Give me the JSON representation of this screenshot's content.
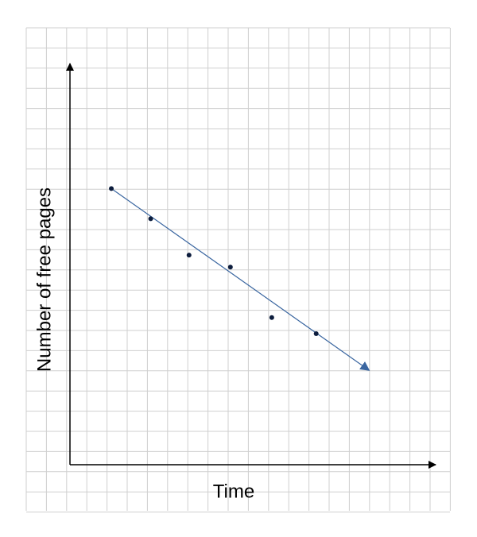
{
  "chart_data": {
    "type": "scatter",
    "x_label": "Time",
    "y_label": "Number of free pages",
    "x": [
      2.05,
      4.0,
      5.9,
      7.95,
      10.0,
      12.2
    ],
    "y": [
      13.7,
      12.2,
      10.4,
      9.8,
      7.3,
      6.5
    ],
    "color": "#0d1d3d",
    "trend_line": {
      "x": [
        2.05,
        14.8
      ],
      "y": [
        13.7,
        4.7
      ],
      "color": "#3a66a0"
    },
    "xlim": [
      0,
      18.2
    ],
    "ylim": [
      0,
      19.9
    ],
    "grid": true
  }
}
